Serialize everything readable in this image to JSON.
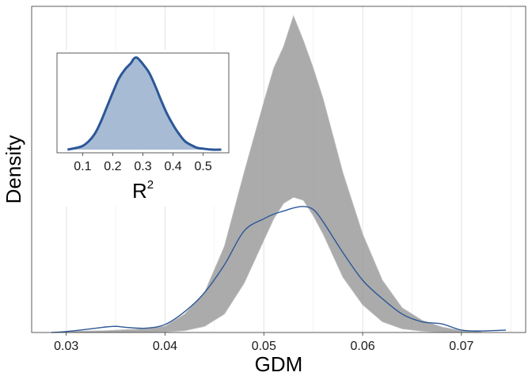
{
  "chart_data": [
    {
      "type": "line",
      "role": "main-density",
      "xlabel": "GDM",
      "ylabel": "Density",
      "xlim": [
        0.0265,
        0.0765
      ],
      "ylim": [
        0,
        103
      ],
      "x_ticks": [
        "0.03",
        "0.04",
        "0.05",
        "0.06",
        "0.07"
      ],
      "x_tick_values": [
        0.03,
        0.04,
        0.05,
        0.06,
        0.07
      ],
      "grid": "vertical only",
      "line_color": "#2b5797",
      "band_color": "#999999",
      "series": [
        {
          "name": "",
          "x": [
            0.0285,
            0.03,
            0.032,
            0.034,
            0.035,
            0.036,
            0.038,
            0.04,
            0.042,
            0.044,
            0.046,
            0.048,
            0.05,
            0.051,
            0.052,
            0.053,
            0.054,
            0.055,
            0.056,
            0.058,
            0.06,
            0.062,
            0.064,
            0.066,
            0.068,
            0.07,
            0.072,
            0.0745
          ],
          "y": [
            0.0,
            0.3,
            1.0,
            1.8,
            2.0,
            1.7,
            1.4,
            2.6,
            6.8,
            13,
            22,
            33,
            37,
            38.5,
            39.5,
            40.5,
            41,
            40,
            36,
            26,
            17,
            11,
            6,
            3.5,
            2.8,
            0.8,
            0.5,
            0.8
          ]
        }
      ],
      "band_upper": {
        "x": [
          0.03,
          0.034,
          0.038,
          0.04,
          0.042,
          0.044,
          0.046,
          0.048,
          0.05,
          0.051,
          0.052,
          0.053,
          0.054,
          0.055,
          0.056,
          0.058,
          0.06,
          0.062,
          0.064,
          0.066,
          0.068,
          0.07,
          0.072
        ],
        "y": [
          0.3,
          0.6,
          1.2,
          2.0,
          6.0,
          13,
          28,
          52,
          75,
          86,
          93,
          103,
          95,
          86,
          76,
          52,
          32,
          17,
          8,
          4.0,
          1.8,
          0.6,
          0.2
        ]
      },
      "band_lower": {
        "x": [
          0.072,
          0.07,
          0.068,
          0.066,
          0.064,
          0.062,
          0.06,
          0.058,
          0.056,
          0.055,
          0.054,
          0.053,
          0.052,
          0.051,
          0.05,
          0.048,
          0.046,
          0.044,
          0.042,
          0.04,
          0.038,
          0.034,
          0.03
        ],
        "y": [
          0.0,
          0.0,
          0.1,
          0.4,
          1.2,
          3.5,
          9,
          18,
          32,
          38,
          43,
          44,
          42,
          37,
          30,
          16,
          6,
          2.0,
          0.6,
          0.2,
          0.1,
          0.0,
          0.0
        ]
      }
    },
    {
      "type": "area",
      "role": "inset-density",
      "xlabel": "R",
      "xlabel_superscript": "2",
      "xlim": [
        0.015,
        0.585
      ],
      "ylim": [
        0,
        1.05
      ],
      "x_ticks": [
        "0.1",
        "0.2",
        "0.3",
        "0.4",
        "0.5"
      ],
      "x_tick_values": [
        0.1,
        0.2,
        0.3,
        0.4,
        0.5
      ],
      "fill_color": "#a8bbd5",
      "line_color": "#2b5797",
      "series": [
        {
          "name": "",
          "x": [
            0.05,
            0.08,
            0.1,
            0.12,
            0.14,
            0.16,
            0.18,
            0.2,
            0.22,
            0.24,
            0.26,
            0.27,
            0.28,
            0.29,
            0.3,
            0.32,
            0.34,
            0.36,
            0.38,
            0.4,
            0.42,
            0.44,
            0.46,
            0.48,
            0.5,
            0.53,
            0.56
          ],
          "y": [
            0.0,
            0.02,
            0.04,
            0.09,
            0.17,
            0.3,
            0.46,
            0.62,
            0.77,
            0.87,
            0.94,
            0.99,
            1.0,
            0.97,
            0.93,
            0.84,
            0.7,
            0.54,
            0.39,
            0.27,
            0.17,
            0.09,
            0.05,
            0.02,
            0.01,
            0.0,
            0.0
          ]
        }
      ]
    }
  ]
}
